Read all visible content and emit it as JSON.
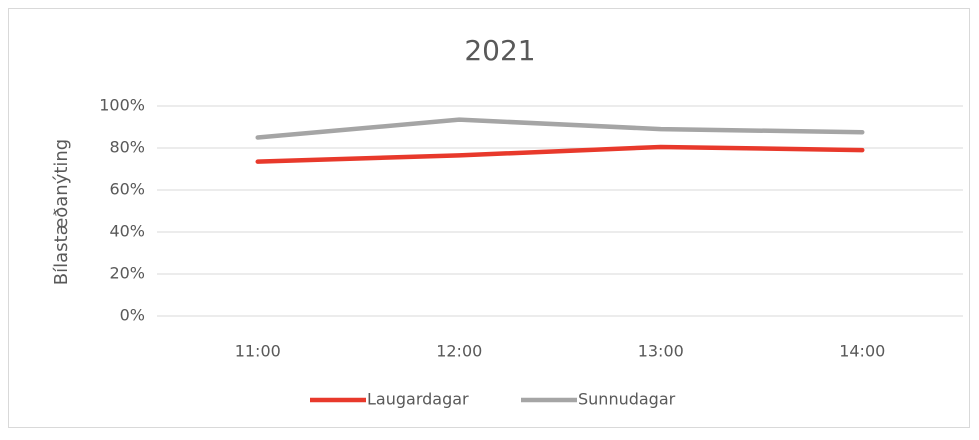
{
  "chart_data": {
    "type": "line",
    "title": "2021",
    "y_label": "Bílastæðanýting",
    "categories": [
      "11:00",
      "12:00",
      "13:00",
      "14:00"
    ],
    "series": [
      {
        "name": "Laugardagar",
        "color": "#e8392b",
        "values": [
          73.5,
          76.5,
          80.5,
          79
        ]
      },
      {
        "name": "Sunnudagar",
        "color": "#a5a5a5",
        "values": [
          85,
          93.5,
          89,
          87.5
        ]
      }
    ],
    "ylim": [
      0,
      100
    ],
    "yticks": [
      {
        "value": 0,
        "label": "0%"
      },
      {
        "value": 20,
        "label": "20%"
      },
      {
        "value": 40,
        "label": "40%"
      },
      {
        "value": 60,
        "label": "60%"
      },
      {
        "value": 80,
        "label": "80%"
      },
      {
        "value": 100,
        "label": "100%"
      }
    ],
    "grid": true,
    "legend": "bottom"
  }
}
